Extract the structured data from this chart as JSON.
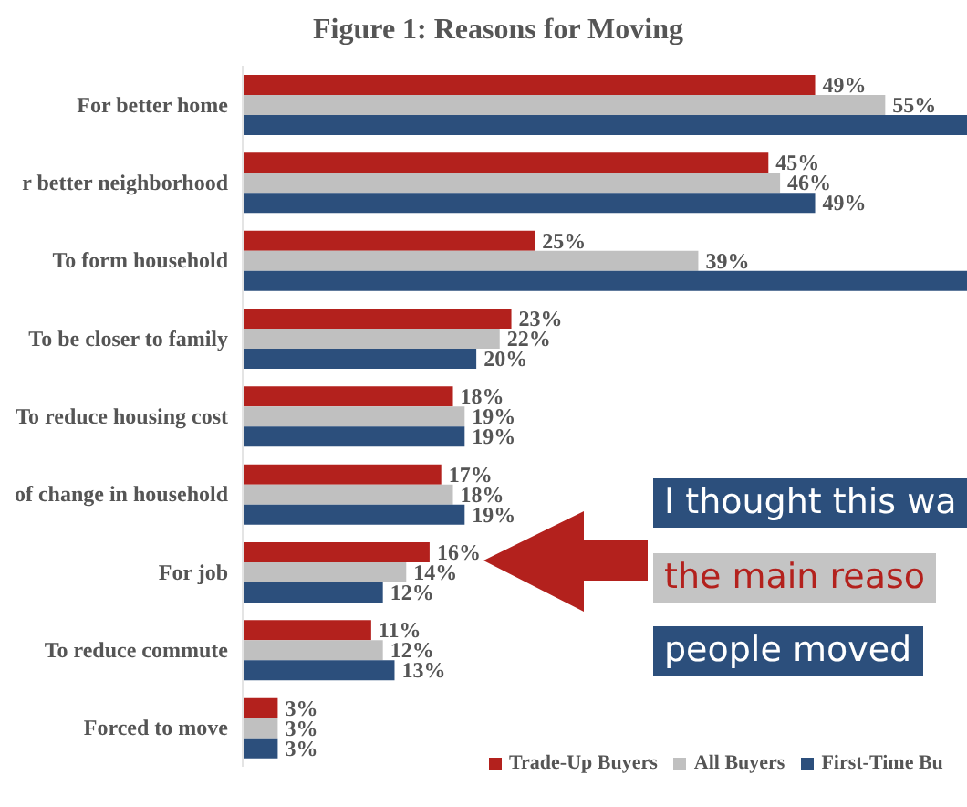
{
  "chart_data": {
    "type": "bar",
    "orientation": "horizontal",
    "title": "Figure 1: Reasons for Moving",
    "categories": [
      "For better home",
      "r better neighborhood",
      "To form household",
      "To be closer to family",
      "To reduce housing cost",
      "of change in household",
      "For job",
      "To reduce commute",
      "Forced to move"
    ],
    "series": [
      {
        "name": "Trade-Up Buyers",
        "color": "#b3211d",
        "values": [
          49,
          45,
          25,
          23,
          18,
          17,
          16,
          11,
          3
        ],
        "value_labels": [
          "49%",
          "45%",
          "25%",
          "23%",
          "18%",
          "17%",
          "16%",
          "11%",
          "3%"
        ]
      },
      {
        "name": "All Buyers",
        "color": "#c0c0c0",
        "values": [
          55,
          46,
          39,
          22,
          19,
          18,
          14,
          12,
          3
        ],
        "value_labels": [
          "55%",
          "46%",
          "39%",
          "22%",
          "19%",
          "18%",
          "14%",
          "12%",
          "3%"
        ]
      },
      {
        "name": "First-Time Bu",
        "color": "#2c4f7c",
        "values": [
          62,
          49,
          62,
          20,
          19,
          19,
          12,
          13,
          3
        ],
        "value_labels": [
          null,
          "49%",
          null,
          "20%",
          "19%",
          "19%",
          "12%",
          "13%",
          "3%"
        ]
      }
    ],
    "xlim": [
      0,
      62
    ],
    "tick_labels": "y",
    "legend": "bottom right",
    "annotations": [
      "I thought this wa",
      "the main reaso",
      "people moved"
    ]
  }
}
